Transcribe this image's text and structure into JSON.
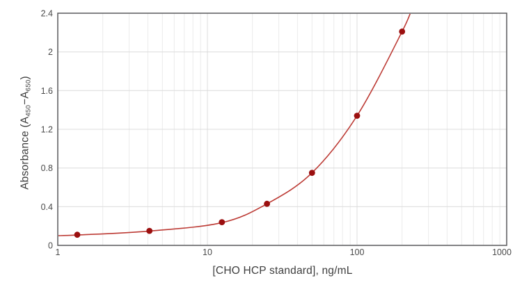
{
  "chart_data": {
    "type": "scatter",
    "title": "",
    "xlabel": "[CHO HCP standard], ng/mL",
    "ylabel": "Absorbance (A450−A650)",
    "ylabel_parts": {
      "pre": "Absorbance (A",
      "sub1": "450",
      "mid": "−A",
      "sub2": "650",
      "post": ")"
    },
    "x_scale": "log10",
    "xlim": [
      1,
      1000
    ],
    "ylim": [
      0,
      2.4
    ],
    "grid": {
      "major": true,
      "log_minor": true
    },
    "legend": "none",
    "x_ticks": [
      {
        "value": 1,
        "label": "1"
      },
      {
        "value": 10,
        "label": "10"
      },
      {
        "value": 100,
        "label": "100"
      },
      {
        "value": 1000,
        "label": "1000"
      }
    ],
    "y_ticks": [
      {
        "value": 0,
        "label": "0"
      },
      {
        "value": 0.4,
        "label": "0.4"
      },
      {
        "value": 0.8,
        "label": "0.8"
      },
      {
        "value": 1.2,
        "label": "1.2"
      },
      {
        "value": 1.6,
        "label": "1.6"
      },
      {
        "value": 2,
        "label": "2"
      },
      {
        "value": 2.4,
        "label": "2.4"
      }
    ],
    "points": {
      "x": [
        1.35,
        4.1,
        12.5,
        25,
        50,
        100,
        200
      ],
      "y": [
        0.11,
        0.15,
        0.24,
        0.43,
        0.75,
        1.34,
        2.21
      ]
    },
    "curve_anchors": [
      [
        1,
        0.1
      ],
      [
        1.35,
        0.107
      ],
      [
        4.1,
        0.148
      ],
      [
        12.5,
        0.235
      ],
      [
        25,
        0.43
      ],
      [
        50,
        0.75
      ],
      [
        100,
        1.34
      ],
      [
        200,
        2.21
      ],
      [
        235,
        2.47
      ]
    ],
    "colors": {
      "marker": "#9b0f0f",
      "line": "#bc3a34",
      "grid_major": "#dcdcdc",
      "grid_minor": "#ebebeb",
      "axis": "#58595b",
      "tick_text": "#4a4a4a",
      "title_text": "#3d3d3d"
    }
  }
}
